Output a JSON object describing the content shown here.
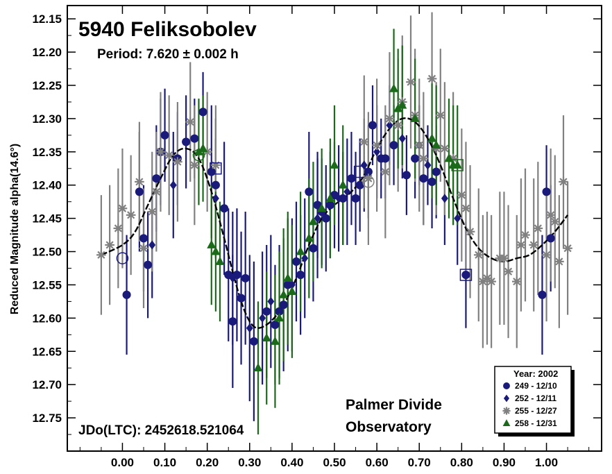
{
  "chart_data": {
    "type": "scatter",
    "title": "5940 Feliksobolev",
    "subtitle": "Period: 7.620 ± 0.002 h",
    "ylabel": "Reduced Magnitude alpha(14.6°)",
    "xlabel": "",
    "jd_label": "JDo(LTC): 2452618.521064",
    "observatory": [
      "Palmer Divide",
      "Observatory"
    ],
    "xlim": [
      -0.13,
      1.13
    ],
    "ylim": [
      12.13,
      12.8
    ],
    "y_inverted": true,
    "x_ticks": [
      "0.00",
      "0.10",
      "0.20",
      "0.30",
      "0.40",
      "0.50",
      "0.60",
      "0.70",
      "0.80",
      "0.90",
      "1.00"
    ],
    "y_ticks": [
      "12.15",
      "12.20",
      "12.25",
      "12.30",
      "12.35",
      "12.40",
      "12.45",
      "12.50",
      "12.55",
      "12.60",
      "12.65",
      "12.70",
      "12.75"
    ],
    "legend": {
      "title": "Year: 2002",
      "position": "bottom-right"
    },
    "fit_curve": [
      [
        -0.05,
        12.505
      ],
      [
        0.0,
        12.49
      ],
      [
        0.03,
        12.47
      ],
      [
        0.06,
        12.43
      ],
      [
        0.09,
        12.39
      ],
      [
        0.12,
        12.355
      ],
      [
        0.15,
        12.345
      ],
      [
        0.18,
        12.36
      ],
      [
        0.21,
        12.41
      ],
      [
        0.24,
        12.48
      ],
      [
        0.26,
        12.53
      ],
      [
        0.28,
        12.575
      ],
      [
        0.3,
        12.605
      ],
      [
        0.32,
        12.615
      ],
      [
        0.35,
        12.605
      ],
      [
        0.38,
        12.58
      ],
      [
        0.41,
        12.54
      ],
      [
        0.44,
        12.49
      ],
      [
        0.47,
        12.45
      ],
      [
        0.5,
        12.43
      ],
      [
        0.54,
        12.41
      ],
      [
        0.57,
        12.385
      ],
      [
        0.6,
        12.345
      ],
      [
        0.63,
        12.315
      ],
      [
        0.66,
        12.3
      ],
      [
        0.69,
        12.305
      ],
      [
        0.72,
        12.33
      ],
      [
        0.75,
        12.37
      ],
      [
        0.78,
        12.42
      ],
      [
        0.81,
        12.465
      ],
      [
        0.84,
        12.495
      ],
      [
        0.87,
        12.51
      ],
      [
        0.9,
        12.515
      ],
      [
        0.93,
        12.51
      ],
      [
        0.96,
        12.505
      ],
      [
        0.99,
        12.49
      ],
      [
        1.02,
        12.47
      ],
      [
        1.05,
        12.445
      ]
    ],
    "series": [
      {
        "name": "249 - 12/10",
        "marker": "circle",
        "color": "#1a1a7a",
        "points": [
          [
            0.01,
            12.565,
            0.09
          ],
          [
            0.04,
            12.41,
            0.09
          ],
          [
            0.05,
            12.48,
            0.08
          ],
          [
            0.06,
            12.52,
            0.08
          ],
          [
            0.08,
            12.39,
            0.08
          ],
          [
            0.09,
            12.35,
            0.08
          ],
          [
            0.1,
            12.325,
            0.07
          ],
          [
            0.13,
            12.36,
            0.07
          ],
          [
            0.15,
            12.335,
            0.07
          ],
          [
            0.17,
            12.33,
            0.06
          ],
          [
            0.19,
            12.29,
            0.06
          ],
          [
            0.21,
            12.38,
            0.1
          ],
          [
            0.22,
            12.4,
            0.1
          ],
          [
            0.24,
            12.435,
            0.1
          ],
          [
            0.25,
            12.535,
            0.1
          ],
          [
            0.26,
            12.605,
            0.1
          ],
          [
            0.27,
            12.535,
            0.1
          ],
          [
            0.28,
            12.57,
            0.1
          ],
          [
            0.29,
            12.54,
            0.1
          ],
          [
            0.31,
            12.635,
            0.12
          ],
          [
            0.34,
            12.59,
            0.1
          ],
          [
            0.36,
            12.61,
            0.09
          ],
          [
            0.37,
            12.59,
            0.1
          ],
          [
            0.38,
            12.58,
            0.1
          ],
          [
            0.39,
            12.55,
            0.1
          ],
          [
            0.41,
            12.515,
            0.09
          ],
          [
            0.42,
            12.535,
            0.09
          ],
          [
            0.44,
            12.41,
            0.09
          ],
          [
            0.45,
            12.495,
            0.08
          ],
          [
            0.46,
            12.43,
            0.08
          ],
          [
            0.47,
            12.44,
            0.08
          ],
          [
            0.48,
            12.45,
            0.08
          ],
          [
            0.49,
            12.43,
            0.08
          ],
          [
            0.5,
            12.415,
            0.08
          ],
          [
            0.52,
            12.42,
            0.07
          ],
          [
            0.54,
            12.39,
            0.07
          ],
          [
            0.55,
            12.42,
            0.07
          ],
          [
            0.56,
            12.4,
            0.07
          ],
          [
            0.58,
            12.38,
            0.07
          ],
          [
            0.59,
            12.31,
            0.06
          ],
          [
            0.61,
            12.36,
            0.06
          ],
          [
            0.62,
            12.36,
            0.06
          ],
          [
            0.64,
            12.34,
            0.06
          ],
          [
            0.67,
            12.385,
            0.06
          ],
          [
            0.69,
            12.36,
            0.06
          ],
          [
            0.71,
            12.39,
            0.07
          ],
          [
            0.73,
            12.395,
            0.07
          ],
          [
            0.74,
            12.38,
            0.07
          ],
          [
            0.81,
            12.535,
            0.08
          ],
          [
            0.99,
            12.565,
            0.09
          ],
          [
            1.0,
            12.41,
            0.07
          ],
          [
            1.01,
            12.48,
            0.08
          ]
        ]
      },
      {
        "name": "252 - 12/11",
        "marker": "diamond",
        "color": "#1a1a7a",
        "points": [
          [
            0.07,
            12.49,
            0.08
          ],
          [
            0.12,
            12.4,
            0.08
          ],
          [
            0.22,
            12.42,
            0.09
          ],
          [
            0.26,
            12.54,
            0.1
          ],
          [
            0.3,
            12.615,
            0.11
          ],
          [
            0.33,
            12.6,
            0.1
          ],
          [
            0.35,
            12.575,
            0.1
          ],
          [
            0.4,
            12.55,
            0.1
          ],
          [
            0.43,
            12.51,
            0.09
          ],
          [
            0.46,
            12.45,
            0.09
          ],
          [
            0.51,
            12.42,
            0.08
          ],
          [
            0.53,
            12.41,
            0.08
          ],
          [
            0.57,
            12.37,
            0.07
          ],
          [
            0.6,
            12.35,
            0.07
          ],
          [
            0.63,
            12.31,
            0.06
          ],
          [
            0.66,
            12.33,
            0.06
          ],
          [
            0.7,
            12.34,
            0.06
          ],
          [
            0.72,
            12.37,
            0.06
          ],
          [
            0.76,
            12.42,
            0.07
          ],
          [
            0.79,
            12.45,
            0.07
          ]
        ]
      },
      {
        "name": "255 - 12/27",
        "marker": "star",
        "color": "#808080",
        "points": [
          [
            -0.05,
            12.505,
            0.09
          ],
          [
            -0.03,
            12.49,
            0.09
          ],
          [
            -0.01,
            12.465,
            0.09
          ],
          [
            0.0,
            12.435,
            0.09
          ],
          [
            0.02,
            12.445,
            0.09
          ],
          [
            0.04,
            12.395,
            0.09
          ],
          [
            0.05,
            12.495,
            0.09
          ],
          [
            0.07,
            12.44,
            0.09
          ],
          [
            0.08,
            12.41,
            0.09
          ],
          [
            0.09,
            12.35,
            0.09
          ],
          [
            0.11,
            12.355,
            0.09
          ],
          [
            0.13,
            12.365,
            0.09
          ],
          [
            0.16,
            12.305,
            0.09
          ],
          [
            0.17,
            12.37,
            0.09
          ],
          [
            0.2,
            12.35,
            0.09
          ],
          [
            0.22,
            12.37,
            0.09
          ],
          [
            0.57,
            12.335,
            0.1
          ],
          [
            0.58,
            12.39,
            0.1
          ],
          [
            0.6,
            12.34,
            0.1
          ],
          [
            0.62,
            12.38,
            0.1
          ],
          [
            0.63,
            12.3,
            0.1
          ],
          [
            0.65,
            12.31,
            0.1
          ],
          [
            0.66,
            12.275,
            0.1
          ],
          [
            0.68,
            12.245,
            0.1
          ],
          [
            0.69,
            12.295,
            0.1
          ],
          [
            0.7,
            12.34,
            0.1
          ],
          [
            0.71,
            12.36,
            0.1
          ],
          [
            0.73,
            12.24,
            0.1
          ],
          [
            0.74,
            12.345,
            0.1
          ],
          [
            0.75,
            12.295,
            0.1
          ],
          [
            0.76,
            12.345,
            0.1
          ],
          [
            0.78,
            12.36,
            0.1
          ],
          [
            0.8,
            12.415,
            0.1
          ],
          [
            0.81,
            12.435,
            0.1
          ],
          [
            0.82,
            12.47,
            0.1
          ],
          [
            0.84,
            12.505,
            0.1
          ],
          [
            0.85,
            12.545,
            0.1
          ],
          [
            0.86,
            12.54,
            0.1
          ],
          [
            0.87,
            12.545,
            0.1
          ],
          [
            0.89,
            12.51,
            0.1
          ],
          [
            0.9,
            12.51,
            0.1
          ],
          [
            0.91,
            12.53,
            0.1
          ],
          [
            0.93,
            12.545,
            0.1
          ],
          [
            0.94,
            12.49,
            0.1
          ],
          [
            0.95,
            12.475,
            0.1
          ],
          [
            0.97,
            12.49,
            0.1
          ],
          [
            0.98,
            12.465,
            0.1
          ],
          [
            1.0,
            12.505,
            0.1
          ],
          [
            1.01,
            12.445,
            0.1
          ],
          [
            1.02,
            12.455,
            0.1
          ],
          [
            1.03,
            12.515,
            0.1
          ],
          [
            1.04,
            12.395,
            0.1
          ],
          [
            1.05,
            12.495,
            0.1
          ]
        ]
      },
      {
        "name": "258 - 12/31",
        "marker": "triangle",
        "color": "#1a6a1a",
        "points": [
          [
            0.18,
            12.35,
            0.08
          ],
          [
            0.19,
            12.345,
            0.08
          ],
          [
            0.21,
            12.49,
            0.09
          ],
          [
            0.22,
            12.5,
            0.09
          ],
          [
            0.23,
            12.515,
            0.09
          ],
          [
            0.32,
            12.675,
            0.1
          ],
          [
            0.34,
            12.63,
            0.1
          ],
          [
            0.36,
            12.635,
            0.1
          ],
          [
            0.37,
            12.6,
            0.1
          ],
          [
            0.38,
            12.565,
            0.1
          ],
          [
            0.39,
            12.54,
            0.1
          ],
          [
            0.4,
            12.56,
            0.1
          ],
          [
            0.42,
            12.5,
            0.09
          ],
          [
            0.44,
            12.48,
            0.09
          ],
          [
            0.45,
            12.455,
            0.09
          ],
          [
            0.47,
            12.435,
            0.09
          ],
          [
            0.49,
            12.42,
            0.09
          ],
          [
            0.5,
            12.37,
            0.09
          ],
          [
            0.52,
            12.4,
            0.09
          ],
          [
            0.64,
            12.255,
            0.09
          ],
          [
            0.65,
            12.285,
            0.09
          ],
          [
            0.66,
            12.28,
            0.09
          ],
          [
            0.69,
            12.3,
            0.09
          ],
          [
            0.73,
            12.33,
            0.09
          ],
          [
            0.74,
            12.34,
            0.09
          ],
          [
            0.77,
            12.36,
            0.09
          ],
          [
            0.78,
            12.37,
            0.09
          ],
          [
            0.79,
            12.37,
            0.09
          ]
        ]
      }
    ],
    "outliers": [
      {
        "marker": "circle",
        "color": "#1a1a7a",
        "x": 0.0,
        "y": 12.51
      },
      {
        "marker": "square",
        "color": "#1a1a7a",
        "x": 0.22,
        "y": 12.375
      },
      {
        "marker": "circle",
        "color": "#1a6a1a",
        "x": 0.18,
        "y": 12.355
      },
      {
        "marker": "square",
        "color": "#1a1a7a",
        "x": 0.56,
        "y": 12.38
      },
      {
        "marker": "circle",
        "color": "#808080",
        "x": 0.58,
        "y": 12.395
      },
      {
        "marker": "square",
        "color": "#1a6a1a",
        "x": 0.79,
        "y": 12.37
      },
      {
        "marker": "square",
        "color": "#1a1a7a",
        "x": 0.81,
        "y": 12.535
      }
    ]
  }
}
